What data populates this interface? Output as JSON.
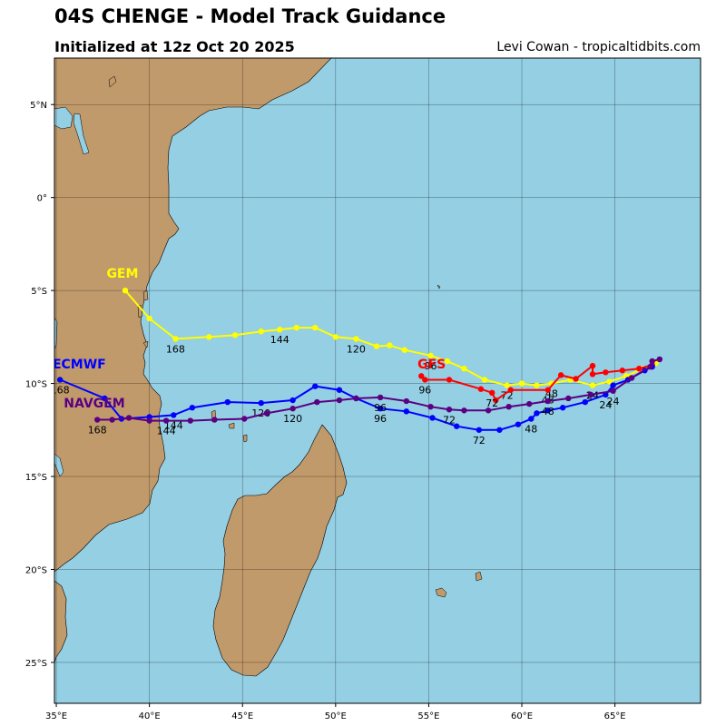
{
  "header": {
    "title": "04S CHENGE - Model Track Guidance",
    "subtitle": "Initialized at 12z Oct 20 2025",
    "credit": "Levi Cowan - tropicaltidbits.com"
  },
  "map": {
    "lon_range": [
      34.9,
      69.6
    ],
    "lat_range": [
      -27.2,
      7.5
    ],
    "lon_ticks": [
      "35°E",
      "40°E",
      "45°E",
      "50°E",
      "55°E",
      "60°E",
      "65°E"
    ],
    "lat_ticks": [
      "5°N",
      "0°",
      "5°S",
      "10°S",
      "15°S",
      "20°S",
      "25°S"
    ],
    "ocean_color": "#94cfe4",
    "land_color": "#c19a6b",
    "grid": true
  },
  "models": [
    {
      "name": "GEM",
      "color": "#ffff00",
      "label": "GEM",
      "points": [
        [
          67.2,
          -8.9
        ],
        [
          66.5,
          -9.2
        ],
        [
          65.6,
          -9.6
        ],
        [
          64.7,
          -9.9
        ],
        [
          63.8,
          -10.1
        ],
        [
          62.6,
          -9.8
        ],
        [
          61.6,
          -10.0
        ],
        [
          60.8,
          -10.1
        ],
        [
          60.0,
          -10.0
        ],
        [
          59.2,
          -10.1
        ],
        [
          58.0,
          -9.8
        ],
        [
          56.9,
          -9.2
        ],
        [
          56.0,
          -8.8
        ],
        [
          55.1,
          -8.5
        ],
        [
          53.7,
          -8.2
        ],
        [
          52.9,
          -7.95
        ],
        [
          52.2,
          -8.0
        ],
        [
          51.1,
          -7.6
        ],
        [
          50.0,
          -7.5
        ],
        [
          48.9,
          -7.0
        ],
        [
          47.9,
          -7.0
        ],
        [
          47.0,
          -7.1
        ],
        [
          46.0,
          -7.2
        ],
        [
          44.6,
          -7.4
        ],
        [
          43.2,
          -7.5
        ],
        [
          41.4,
          -7.6
        ],
        [
          40.0,
          -6.5
        ],
        [
          38.7,
          -5.0
        ]
      ],
      "hours": [
        {
          "text": "24",
          "lon": 63.8,
          "lat": -10.1
        },
        {
          "text": "48",
          "lon": 61.6,
          "lat": -10.0
        },
        {
          "text": "72",
          "lon": 59.2,
          "lat": -10.1
        },
        {
          "text": "96",
          "lon": 55.1,
          "lat": -8.5
        },
        {
          "text": "120",
          "lon": 51.1,
          "lat": -7.6
        },
        {
          "text": "144",
          "lon": 47.0,
          "lat": -7.1
        },
        {
          "text": "168",
          "lon": 41.4,
          "lat": -7.6
        }
      ],
      "label_pos": [
        37.7,
        -4.3
      ]
    },
    {
      "name": "GFS",
      "color": "#ff0000",
      "label": "GFS",
      "points": [
        [
          67.0,
          -9.0
        ],
        [
          66.3,
          -9.2
        ],
        [
          65.4,
          -9.3
        ],
        [
          64.5,
          -9.4
        ],
        [
          63.8,
          -9.5
        ],
        [
          63.8,
          -9.05
        ],
        [
          62.9,
          -9.75
        ],
        [
          62.1,
          -9.55
        ],
        [
          61.4,
          -10.35
        ],
        [
          59.4,
          -10.35
        ],
        [
          58.6,
          -10.9
        ],
        [
          58.4,
          -10.5
        ],
        [
          57.8,
          -10.3
        ],
        [
          56.1,
          -9.8
        ],
        [
          54.8,
          -9.8
        ],
        [
          54.6,
          -9.6
        ]
      ],
      "hours": [
        {
          "text": "24",
          "lon": 63.8,
          "lat": -10.1
        },
        {
          "text": "48",
          "lon": 61.4,
          "lat": -10.35
        },
        {
          "text": "72",
          "lon": 58.4,
          "lat": -10.5
        },
        {
          "text": "96",
          "lon": 54.8,
          "lat": -9.8
        }
      ],
      "label_pos": [
        54.4,
        -9.2
      ]
    },
    {
      "name": "ECMWF",
      "color": "#0000ff",
      "label": "ECMWF",
      "points": [
        [
          67.0,
          -9.1
        ],
        [
          66.6,
          -9.3
        ],
        [
          65.7,
          -9.8
        ],
        [
          64.9,
          -10.1
        ],
        [
          64.5,
          -10.6
        ],
        [
          63.4,
          -11.0
        ],
        [
          62.2,
          -11.3
        ],
        [
          61.4,
          -11.45
        ],
        [
          60.8,
          -11.6
        ],
        [
          60.5,
          -11.9
        ],
        [
          59.8,
          -12.2
        ],
        [
          58.8,
          -12.5
        ],
        [
          57.7,
          -12.5
        ],
        [
          56.5,
          -12.3
        ],
        [
          55.2,
          -11.85
        ],
        [
          53.8,
          -11.5
        ],
        [
          52.4,
          -11.35
        ],
        [
          51.1,
          -10.8
        ],
        [
          50.2,
          -10.35
        ],
        [
          48.9,
          -10.15
        ],
        [
          47.7,
          -10.9
        ],
        [
          46.0,
          -11.05
        ],
        [
          44.2,
          -11.0
        ],
        [
          42.3,
          -11.3
        ],
        [
          41.3,
          -11.7
        ],
        [
          40.0,
          -11.8
        ],
        [
          38.5,
          -11.9
        ],
        [
          37.6,
          -10.8
        ],
        [
          35.2,
          -9.8
        ]
      ],
      "hours": [
        {
          "text": "24",
          "lon": 64.5,
          "lat": -10.6
        },
        {
          "text": "48",
          "lon": 60.5,
          "lat": -11.9
        },
        {
          "text": "72",
          "lon": 57.7,
          "lat": -12.5
        },
        {
          "text": "96",
          "lon": 52.4,
          "lat": -11.35
        },
        {
          "text": "120",
          "lon": 46.0,
          "lat": -11.05
        },
        {
          "text": "144",
          "lon": 41.3,
          "lat": -11.7
        },
        {
          "text": "168",
          "lon": 35.2,
          "lat": -9.8
        }
      ],
      "label_pos": [
        34.8,
        -9.2
      ]
    },
    {
      "name": "NAVGEM",
      "color": "#5b0082",
      "label": "NAVGEM",
      "points": [
        [
          67.4,
          -8.7
        ],
        [
          67.0,
          -8.8
        ],
        [
          66.9,
          -9.1
        ],
        [
          65.9,
          -9.7
        ],
        [
          64.9,
          -10.4
        ],
        [
          63.7,
          -10.6
        ],
        [
          62.5,
          -10.8
        ],
        [
          61.4,
          -10.95
        ],
        [
          60.4,
          -11.1
        ],
        [
          59.3,
          -11.25
        ],
        [
          58.2,
          -11.45
        ],
        [
          56.9,
          -11.45
        ],
        [
          56.1,
          -11.4
        ],
        [
          55.1,
          -11.25
        ],
        [
          53.8,
          -10.95
        ],
        [
          52.4,
          -10.75
        ],
        [
          51.1,
          -10.8
        ],
        [
          50.2,
          -10.9
        ],
        [
          49.0,
          -11.0
        ],
        [
          47.7,
          -11.35
        ],
        [
          46.3,
          -11.6
        ],
        [
          45.1,
          -11.9
        ],
        [
          43.5,
          -11.95
        ],
        [
          42.2,
          -12.0
        ],
        [
          40.9,
          -12.0
        ],
        [
          40.0,
          -12.0
        ],
        [
          38.9,
          -11.85
        ],
        [
          38.0,
          -11.95
        ],
        [
          37.2,
          -11.95
        ]
      ],
      "hours": [
        {
          "text": "24",
          "lon": 64.9,
          "lat": -10.4
        },
        {
          "text": "48",
          "lon": 61.4,
          "lat": -10.95
        },
        {
          "text": "72",
          "lon": 56.1,
          "lat": -11.4
        },
        {
          "text": "96",
          "lon": 52.4,
          "lat": -10.75
        },
        {
          "text": "120",
          "lon": 47.7,
          "lat": -11.35
        },
        {
          "text": "144",
          "lon": 40.9,
          "lat": -12.0
        },
        {
          "text": "168",
          "lon": 37.2,
          "lat": -11.95
        }
      ],
      "label_pos": [
        35.4,
        -11.3
      ]
    }
  ]
}
